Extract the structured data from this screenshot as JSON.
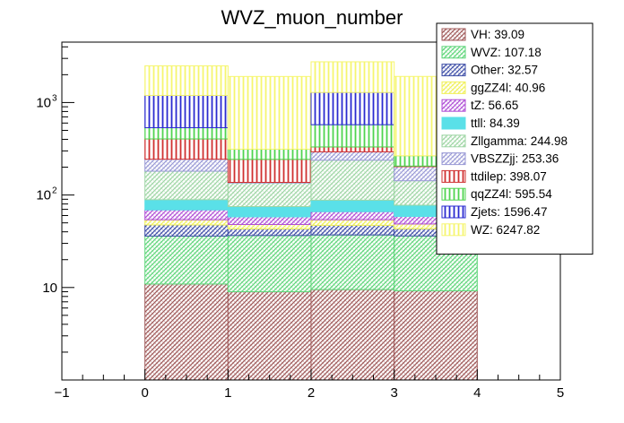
{
  "chart_data": {
    "type": "bar",
    "stacked": true,
    "title": "WVZ_muon_number",
    "xlabel": "",
    "ylabel": "",
    "yscale": "log",
    "xlim": [
      -1,
      5
    ],
    "ylim": [
      1,
      4500
    ],
    "x_ticks": [
      "−1",
      "0",
      "1",
      "2",
      "3",
      "4",
      "5"
    ],
    "y_ticks": [
      {
        "value": 10,
        "base": "10",
        "exp": ""
      },
      {
        "value": 100,
        "base": "10",
        "exp": "2"
      },
      {
        "value": 1000,
        "base": "10",
        "exp": "3"
      }
    ],
    "bins": [
      [
        0,
        1
      ],
      [
        1,
        2
      ],
      [
        2,
        3
      ],
      [
        3,
        4
      ]
    ],
    "legend_position": "top-right",
    "series": [
      {
        "name": "VH",
        "label": "VH: 39.09",
        "color": "#a05a5a",
        "pattern": "hatch-diag",
        "values": [
          10.9,
          9.0,
          9.5,
          9.2
        ]
      },
      {
        "name": "WVZ",
        "label": "WVZ: 107.18",
        "color": "#5fd67a",
        "pattern": "hatch-diag",
        "values": [
          25.1,
          27.5,
          27.5,
          26.9
        ]
      },
      {
        "name": "Other",
        "label": "Other: 32.57",
        "color": "#4050a8",
        "pattern": "hatch-diag",
        "values": [
          11.5,
          6.5,
          10.0,
          7.0
        ]
      },
      {
        "name": "ggZZ4l",
        "label": "ggZZ4l: 40.96",
        "color": "#f0f05a",
        "pattern": "hatch-diag",
        "values": [
          6.5,
          5.0,
          7.0,
          5.5
        ]
      },
      {
        "name": "tZ",
        "label": "tZ: 56.65",
        "color": "#b04fd6",
        "pattern": "hatch-diag",
        "values": [
          15.0,
          10.0,
          12.0,
          10.0
        ]
      },
      {
        "name": "ttll",
        "label": "ttll: 84.39",
        "color": "#5ae0e8",
        "pattern": "solid",
        "values": [
          20.0,
          17.0,
          22.0,
          19.0
        ]
      },
      {
        "name": "Zllgamma",
        "label": "Zllgamma: 244.98",
        "color": "#9fd6a5",
        "pattern": "hatch-diag",
        "values": [
          92.0,
          60.0,
          150.0,
          65.0
        ]
      },
      {
        "name": "VBSZZjj",
        "label": "VBSZZjj: 253.36",
        "color": "#9a9ad6",
        "pattern": "hatch-diag",
        "values": [
          63.0,
          2.0,
          55.0,
          60.0
        ]
      },
      {
        "name": "ttdilep",
        "label": "ttdilep: 398.07",
        "color": "#d03030",
        "pattern": "hatch-vert",
        "values": [
          160.0,
          106.0,
          38.0,
          3.0
        ]
      },
      {
        "name": "qqZZ4l",
        "label": "qqZZ4l: 595.54",
        "color": "#4fd44f",
        "pattern": "hatch-vert",
        "values": [
          130.0,
          70.0,
          245.0,
          60.0
        ]
      },
      {
        "name": "Zjets",
        "label": "Zjets: 1596.47",
        "color": "#2a2ad0",
        "pattern": "hatch-vert",
        "values": [
          660.0,
          0.0,
          710.0,
          0.0
        ]
      },
      {
        "name": "WZ",
        "label": "WZ: 6247.82",
        "color": "#f6f66e",
        "pattern": "hatch-vert",
        "values": [
          1300.0,
          1600.0,
          1470.0,
          1650.0
        ]
      }
    ]
  }
}
